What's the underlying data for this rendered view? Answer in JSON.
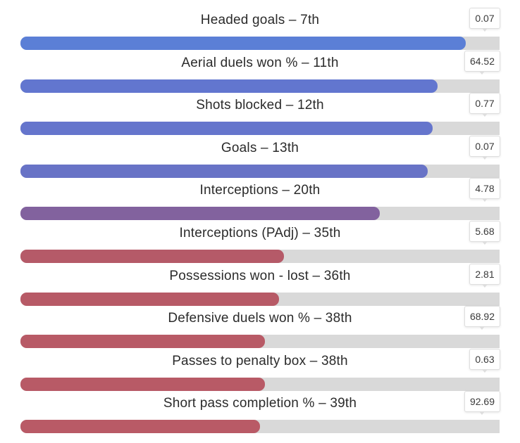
{
  "chart_data": {
    "type": "bar",
    "orientation": "horizontal",
    "scale_max": 100,
    "categories": [
      "Headed goals – 7th",
      "Aerial duels won % – 11th",
      "Shots blocked – 12th",
      "Goals – 13th",
      "Interceptions – 20th",
      "Interceptions (PAdj) – 35th",
      "Possessions won - lost – 36th",
      "Defensive duels won % – 38th",
      "Passes to penalty box – 38th",
      "Short pass completion % – 39th"
    ],
    "rows": [
      {
        "label": "Headed goals – 7th",
        "value": "0.07",
        "fill_pct": 93,
        "color": "#5b7fd6"
      },
      {
        "label": "Aerial duels won % – 11th",
        "value": "64.52",
        "fill_pct": 87,
        "color": "#6276cf"
      },
      {
        "label": "Shots blocked – 12th",
        "value": "0.77",
        "fill_pct": 86,
        "color": "#6575cc"
      },
      {
        "label": "Goals – 13th",
        "value": "0.07",
        "fill_pct": 85,
        "color": "#6873c6"
      },
      {
        "label": "Interceptions – 20th",
        "value": "4.78",
        "fill_pct": 75,
        "color": "#82629e"
      },
      {
        "label": "Interceptions (PAdj) – 35th",
        "value": "5.68",
        "fill_pct": 55,
        "color": "#b55a68"
      },
      {
        "label": "Possessions won - lost – 36th",
        "value": "2.81",
        "fill_pct": 54,
        "color": "#b75a66"
      },
      {
        "label": "Defensive duels won % – 38th",
        "value": "68.92",
        "fill_pct": 51,
        "color": "#b85a66"
      },
      {
        "label": "Passes to penalty box – 38th",
        "value": "0.63",
        "fill_pct": 51,
        "color": "#b85a66"
      },
      {
        "label": "Short pass completion % – 39th",
        "value": "92.69",
        "fill_pct": 50,
        "color": "#b95a66"
      }
    ],
    "track_color": "#d9d9d9"
  }
}
